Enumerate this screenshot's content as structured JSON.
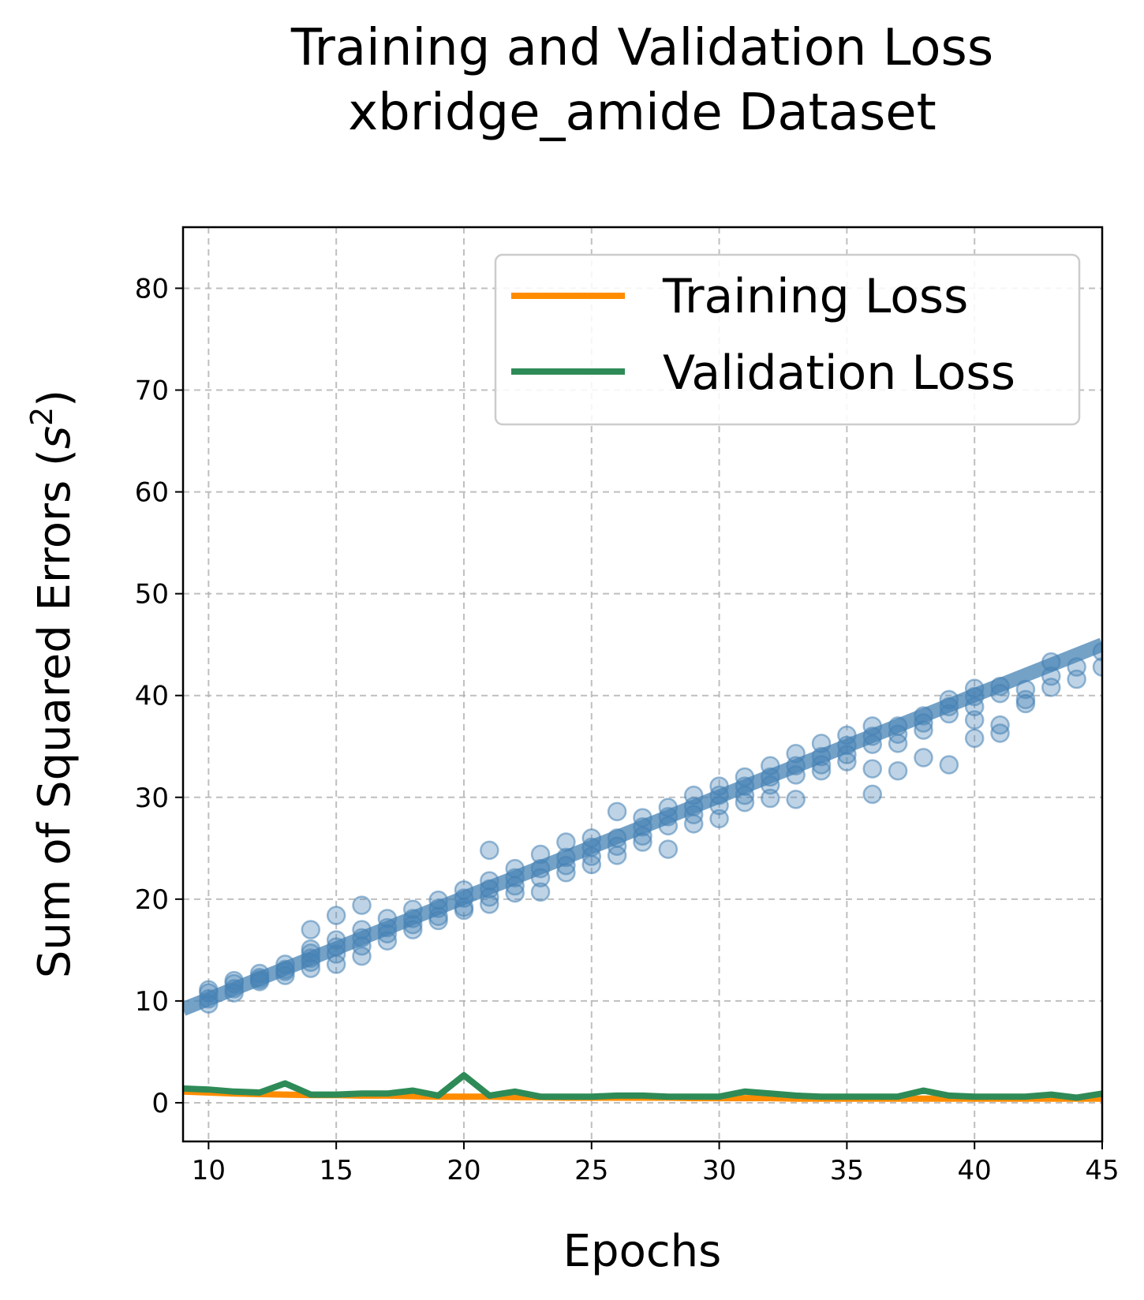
{
  "chart_data": {
    "type": "line",
    "title": "Training and Validation Loss",
    "subtitle": "xbridge_amide Dataset",
    "xlabel": "Epochs",
    "ylabel": "Sum of Squared Errors (s²)",
    "ylabel_main": "Sum of Squared Errors (",
    "ylabel_var": "s",
    "ylabel_exp": "2",
    "ylabel_close": ")",
    "xlim": [
      9,
      45
    ],
    "ylim": [
      -3.8,
      86
    ],
    "xticks": [
      10,
      15,
      20,
      25,
      30,
      35,
      40,
      45
    ],
    "yticks": [
      0,
      10,
      20,
      30,
      40,
      50,
      60,
      70,
      80
    ],
    "grid": true,
    "legend_position": "upper-right",
    "series": [
      {
        "name": "Training Loss",
        "color": "#ff8c00",
        "x": [
          9,
          10,
          11,
          12,
          13,
          14,
          15,
          16,
          17,
          18,
          19,
          20,
          21,
          22,
          23,
          24,
          25,
          26,
          27,
          28,
          29,
          30,
          31,
          32,
          33,
          34,
          35,
          36,
          37,
          38,
          39,
          40,
          41,
          42,
          43,
          44,
          45
        ],
        "y": [
          1.1,
          1.0,
          0.9,
          0.85,
          0.8,
          0.75,
          0.75,
          0.7,
          0.7,
          0.65,
          0.6,
          0.6,
          0.6,
          0.55,
          0.55,
          0.5,
          0.5,
          0.5,
          0.5,
          0.5,
          0.45,
          0.45,
          0.45,
          0.45,
          0.4,
          0.4,
          0.4,
          0.4,
          0.4,
          0.4,
          0.4,
          0.4,
          0.4,
          0.4,
          0.4,
          0.4,
          0.4
        ]
      },
      {
        "name": "Validation Loss",
        "color": "#2e8b57",
        "x": [
          9,
          10,
          11,
          12,
          13,
          14,
          15,
          16,
          17,
          18,
          19,
          20,
          21,
          22,
          23,
          24,
          25,
          26,
          27,
          28,
          29,
          30,
          31,
          32,
          33,
          34,
          35,
          36,
          37,
          38,
          39,
          40,
          41,
          42,
          43,
          44,
          45
        ],
        "y": [
          1.4,
          1.3,
          1.1,
          1.0,
          1.9,
          0.8,
          0.8,
          0.9,
          0.9,
          1.2,
          0.7,
          2.7,
          0.7,
          1.1,
          0.6,
          0.6,
          0.6,
          0.7,
          0.7,
          0.6,
          0.6,
          0.6,
          1.1,
          0.9,
          0.7,
          0.6,
          0.6,
          0.6,
          0.6,
          1.2,
          0.7,
          0.6,
          0.6,
          0.6,
          0.8,
          0.5,
          0.9
        ]
      },
      {
        "name": "",
        "type": "scatter_with_trend",
        "color": "#4682b4",
        "trend": {
          "x": [
            9,
            45
          ],
          "y": [
            9.2,
            45
          ]
        },
        "points": [
          [
            10,
            10.8
          ],
          [
            10,
            10.2
          ],
          [
            10,
            9.7
          ],
          [
            10,
            11.1
          ],
          [
            11,
            11.2
          ],
          [
            11,
            10.8
          ],
          [
            11,
            11.7
          ],
          [
            11,
            12.0
          ],
          [
            12,
            12.3
          ],
          [
            12,
            11.9
          ],
          [
            12,
            12.7
          ],
          [
            12,
            12.1
          ],
          [
            13,
            13.1
          ],
          [
            13,
            12.5
          ],
          [
            13,
            13.6
          ],
          [
            13,
            12.9
          ],
          [
            14,
            14.2
          ],
          [
            14,
            13.8
          ],
          [
            14,
            14.7
          ],
          [
            14,
            17.0
          ],
          [
            14,
            13.2
          ],
          [
            14,
            15.1
          ],
          [
            15,
            15.3
          ],
          [
            15,
            14.6
          ],
          [
            15,
            18.4
          ],
          [
            15,
            13.6
          ],
          [
            15,
            16.0
          ],
          [
            16,
            16.2
          ],
          [
            16,
            15.4
          ],
          [
            16,
            19.4
          ],
          [
            16,
            14.4
          ],
          [
            16,
            17.0
          ],
          [
            17,
            17.2
          ],
          [
            17,
            16.6
          ],
          [
            17,
            18.1
          ],
          [
            17,
            15.9
          ],
          [
            18,
            18.1
          ],
          [
            18,
            17.5
          ],
          [
            18,
            17.0
          ],
          [
            18,
            19.0
          ],
          [
            19,
            19.1
          ],
          [
            19,
            18.3
          ],
          [
            19,
            19.9
          ],
          [
            19,
            17.9
          ],
          [
            20,
            20.1
          ],
          [
            20,
            19.2
          ],
          [
            20,
            20.9
          ],
          [
            20,
            18.9
          ],
          [
            21,
            21.0
          ],
          [
            21,
            24.8
          ],
          [
            21,
            20.2
          ],
          [
            21,
            21.8
          ],
          [
            21,
            19.5
          ],
          [
            22,
            22.1
          ],
          [
            22,
            21.3
          ],
          [
            22,
            23.0
          ],
          [
            22,
            20.6
          ],
          [
            23,
            23.0
          ],
          [
            23,
            22.1
          ],
          [
            23,
            24.4
          ],
          [
            23,
            20.7
          ],
          [
            24,
            24.1
          ],
          [
            24,
            23.3
          ],
          [
            24,
            25.6
          ],
          [
            24,
            22.6
          ],
          [
            25,
            25.1
          ],
          [
            25,
            24.2
          ],
          [
            25,
            26.0
          ],
          [
            25,
            23.4
          ],
          [
            26,
            26.0
          ],
          [
            26,
            25.2
          ],
          [
            26,
            28.6
          ],
          [
            26,
            24.3
          ],
          [
            27,
            27.1
          ],
          [
            27,
            26.2
          ],
          [
            27,
            28.0
          ],
          [
            27,
            25.6
          ],
          [
            28,
            28.1
          ],
          [
            28,
            27.2
          ],
          [
            28,
            29.0
          ],
          [
            28,
            24.9
          ],
          [
            29,
            29.1
          ],
          [
            29,
            28.3
          ],
          [
            29,
            30.2
          ],
          [
            29,
            27.4
          ],
          [
            30,
            30.2
          ],
          [
            30,
            29.2
          ],
          [
            30,
            31.1
          ],
          [
            30,
            27.9
          ],
          [
            31,
            31.1
          ],
          [
            31,
            30.2
          ],
          [
            31,
            32.0
          ],
          [
            31,
            29.5
          ],
          [
            32,
            32.0
          ],
          [
            32,
            31.2
          ],
          [
            32,
            33.1
          ],
          [
            32,
            29.9
          ],
          [
            33,
            33.1
          ],
          [
            33,
            32.2
          ],
          [
            33,
            34.3
          ],
          [
            33,
            29.8
          ],
          [
            34,
            34.0
          ],
          [
            34,
            33.2
          ],
          [
            34,
            35.3
          ],
          [
            34,
            32.6
          ],
          [
            35,
            35.1
          ],
          [
            35,
            34.2
          ],
          [
            35,
            36.1
          ],
          [
            35,
            33.5
          ],
          [
            36,
            36.0
          ],
          [
            36,
            35.2
          ],
          [
            36,
            32.8
          ],
          [
            36,
            30.3
          ],
          [
            36,
            37.0
          ],
          [
            37,
            37.0
          ],
          [
            37,
            36.2
          ],
          [
            37,
            32.6
          ],
          [
            37,
            35.3
          ],
          [
            38,
            38.0
          ],
          [
            38,
            37.3
          ],
          [
            38,
            33.9
          ],
          [
            38,
            36.6
          ],
          [
            39,
            38.9
          ],
          [
            39,
            38.2
          ],
          [
            39,
            33.2
          ],
          [
            39,
            39.6
          ],
          [
            40,
            39.9
          ],
          [
            40,
            38.9
          ],
          [
            40,
            35.8
          ],
          [
            40,
            37.6
          ],
          [
            40,
            40.7
          ],
          [
            41,
            40.2
          ],
          [
            41,
            37.1
          ],
          [
            41,
            36.3
          ],
          [
            41,
            40.9
          ],
          [
            42,
            40.6
          ],
          [
            42,
            39.6
          ],
          [
            42,
            39.2
          ],
          [
            43,
            41.9
          ],
          [
            43,
            43.3
          ],
          [
            43,
            40.8
          ],
          [
            44,
            42.8
          ],
          [
            44,
            41.6
          ],
          [
            45,
            42.8
          ],
          [
            45,
            44.3
          ]
        ]
      }
    ]
  }
}
